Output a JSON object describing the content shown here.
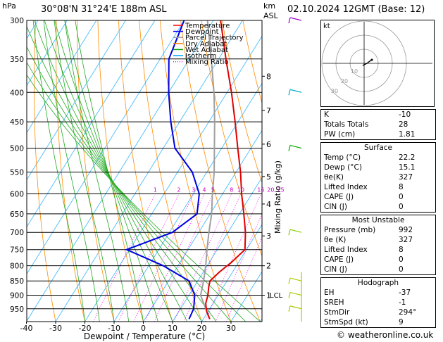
{
  "header": {
    "hpa_label": "hPa",
    "location": "30°08'N  31°24'E  188m  ASL",
    "km_label": "km",
    "asl_label": "ASL",
    "datetime": "02.10.2024  12GMT  (Base: 12)"
  },
  "chart_data": {
    "type": "line",
    "title": "",
    "xlabel": "Dewpoint / Temperature (°C)",
    "ylabel": "hPa",
    "right_axis_label": "Mixing Ratio (g/kg)",
    "pressure_levels": [
      300,
      350,
      400,
      450,
      500,
      550,
      600,
      650,
      700,
      750,
      800,
      850,
      900,
      950
    ],
    "x_ticks": [
      -40,
      -30,
      -20,
      -10,
      0,
      10,
      20,
      30
    ],
    "xlim": [
      -40,
      40
    ],
    "ylim": [
      1000,
      300
    ],
    "km_ticks": [
      {
        "km": "1",
        "p": 900
      },
      {
        "km": "2",
        "p": 800
      },
      {
        "km": "3",
        "p": 710
      },
      {
        "km": "4",
        "p": 625
      },
      {
        "km": "5",
        "p": 560
      },
      {
        "km": "6",
        "p": 492
      },
      {
        "km": "7",
        "p": 430
      },
      {
        "km": "8",
        "p": 375
      }
    ],
    "lcl_label": "LCL",
    "lcl_p": 898,
    "mixing_ratio_labels": [
      "1",
      "2",
      "3",
      "4",
      "5",
      "8",
      "10",
      "16",
      "20",
      "25"
    ],
    "mixing_ratio_values": [
      1,
      2,
      3,
      4,
      5,
      8,
      10,
      16,
      20,
      25
    ],
    "legend": [
      {
        "name": "Temperature",
        "color": "#ff0000",
        "style": "solid"
      },
      {
        "name": "Dewpoint",
        "color": "#0000ff",
        "style": "solid"
      },
      {
        "name": "Parcel Trajectory",
        "color": "#999999",
        "style": "solid"
      },
      {
        "name": "Dry Adiabat",
        "color": "#ff8000",
        "style": "solid"
      },
      {
        "name": "Wet Adiabat",
        "color": "#00a000",
        "style": "solid"
      },
      {
        "name": "Isotherm",
        "color": "#00a0ff",
        "style": "solid"
      },
      {
        "name": "Mixing Ratio",
        "color": "#ff00ff",
        "style": "dotted"
      }
    ],
    "series": [
      {
        "name": "Temperature",
        "color": "#e00000",
        "points": [
          [
            990,
            22.2
          ],
          [
            960,
            19.5
          ],
          [
            930,
            17.5
          ],
          [
            900,
            16.5
          ],
          [
            870,
            15.0
          ],
          [
            850,
            14.2
          ],
          [
            820,
            15.5
          ],
          [
            790,
            17.5
          ],
          [
            750,
            19.5
          ],
          [
            700,
            16.0
          ],
          [
            650,
            11.5
          ],
          [
            600,
            6.5
          ],
          [
            550,
            1.5
          ],
          [
            500,
            -4.5
          ],
          [
            450,
            -11.0
          ],
          [
            400,
            -18.5
          ],
          [
            350,
            -27.5
          ],
          [
            300,
            -37.5
          ]
        ]
      },
      {
        "name": "Dewpoint",
        "color": "#0000e0",
        "points": [
          [
            990,
            15.1
          ],
          [
            950,
            14.5
          ],
          [
            900,
            12.0
          ],
          [
            850,
            7.0
          ],
          [
            800,
            -5.0
          ],
          [
            750,
            -21.0
          ],
          [
            700,
            -9.0
          ],
          [
            650,
            -4.5
          ],
          [
            600,
            -8.0
          ],
          [
            550,
            -15.0
          ],
          [
            500,
            -26.0
          ],
          [
            450,
            -33.0
          ],
          [
            400,
            -40.0
          ],
          [
            350,
            -47.0
          ],
          [
            300,
            -50.0
          ]
        ]
      },
      {
        "name": "Parcel Trajectory",
        "color": "#a0a0a0",
        "points": [
          [
            990,
            22.2
          ],
          [
            900,
            14.0
          ],
          [
            850,
            12.0
          ],
          [
            800,
            9.5
          ],
          [
            750,
            6.5
          ],
          [
            700,
            3.5
          ],
          [
            650,
            0.5
          ],
          [
            600,
            -3.5
          ],
          [
            550,
            -7.5
          ],
          [
            500,
            -12.5
          ],
          [
            450,
            -18.0
          ],
          [
            400,
            -24.5
          ],
          [
            350,
            -32.5
          ],
          [
            300,
            -42.0
          ]
        ]
      }
    ],
    "grid": true,
    "legend_placement": "top-left"
  },
  "hodograph": {
    "unit_label": "kt",
    "ring_labels": [
      "10",
      "20",
      "30"
    ],
    "points": [
      [
        -1.0,
        -1.5
      ],
      [
        0.0,
        -1.0
      ],
      [
        2.0,
        0.0
      ],
      [
        4.0,
        1.5
      ],
      [
        5.5,
        2.5
      ]
    ]
  },
  "indices": {
    "rows": [
      {
        "label": "K",
        "value": "-10"
      },
      {
        "label": "Totals Totals",
        "value": "28"
      },
      {
        "label": "PW (cm)",
        "value": "1.81"
      }
    ]
  },
  "surface": {
    "title": "Surface",
    "rows": [
      {
        "label": "Temp (°C)",
        "value": "22.2"
      },
      {
        "label": "Dewp (°C)",
        "value": "15.1"
      },
      {
        "label": "θe(K)",
        "value": "327"
      },
      {
        "label": "Lifted Index",
        "value": "8"
      },
      {
        "label": "CAPE (J)",
        "value": "0"
      },
      {
        "label": "CIN (J)",
        "value": "0"
      }
    ]
  },
  "most_unstable": {
    "title": "Most Unstable",
    "rows": [
      {
        "label": "Pressure (mb)",
        "value": "992"
      },
      {
        "label": "θe (K)",
        "value": "327"
      },
      {
        "label": "Lifted Index",
        "value": "8"
      },
      {
        "label": "CAPE (J)",
        "value": "0"
      },
      {
        "label": "CIN (J)",
        "value": "0"
      }
    ]
  },
  "hodograph_table": {
    "title": "Hodograph",
    "rows": [
      {
        "label": "EH",
        "value": "-37"
      },
      {
        "label": "SREH",
        "value": "-1"
      },
      {
        "label": "StmDir",
        "value": "294°"
      },
      {
        "label": "StmSpd (kt)",
        "value": "9"
      }
    ]
  },
  "footer": {
    "copyright": "© weatheronline.co.uk"
  }
}
